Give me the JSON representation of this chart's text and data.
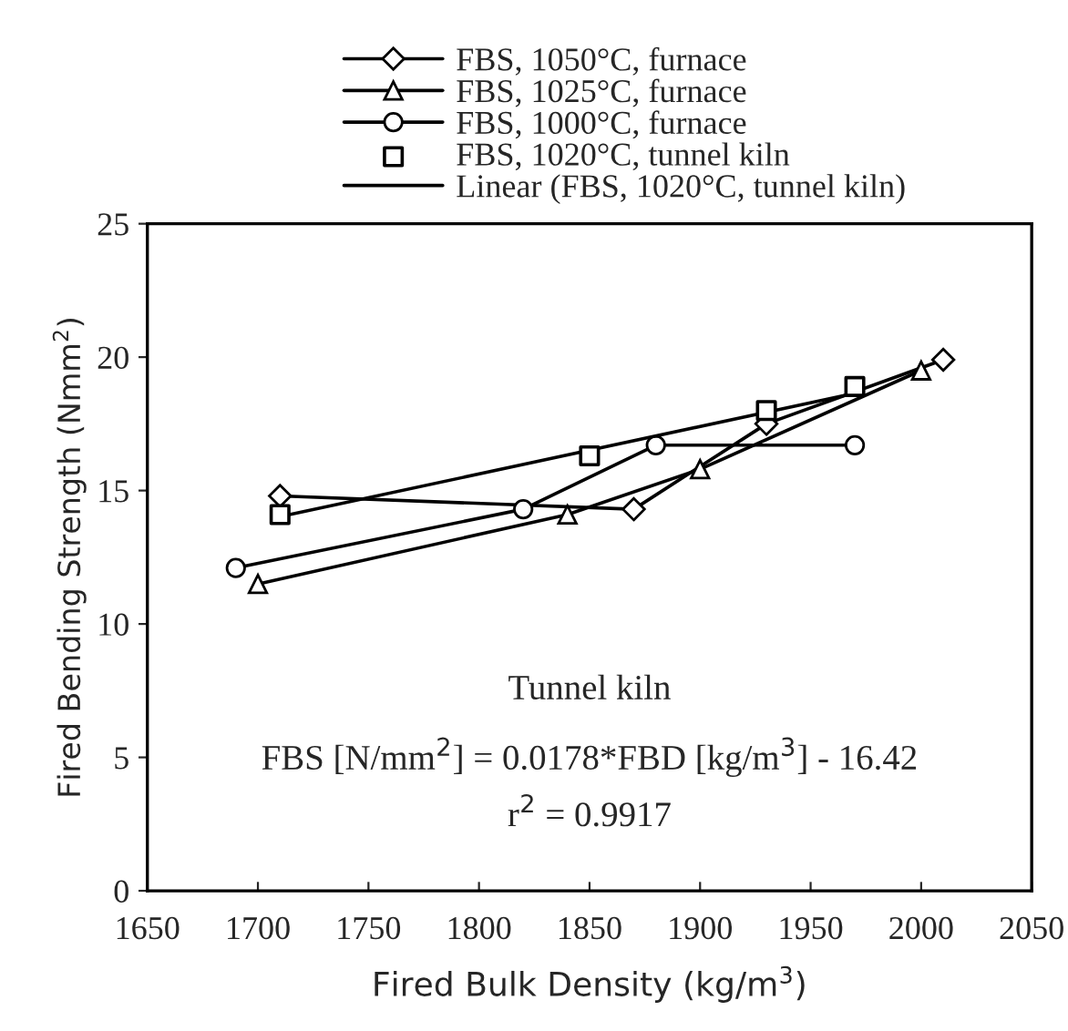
{
  "chart_data": {
    "type": "line",
    "xlabel": "Fired Bulk Density (kg/m$^{3}$)",
    "ylabel": "Fired Bending Strength (Nmm$^{2}$)",
    "xlim": [
      1650,
      2050
    ],
    "xticks": [
      1650,
      1700,
      1750,
      1800,
      1850,
      1900,
      1950,
      2000,
      2050
    ],
    "ylim": [
      0,
      25
    ],
    "yticks": [
      0,
      5,
      10,
      15,
      20,
      25
    ],
    "grid": false,
    "legend": "top",
    "series": [
      {
        "name": "FBS, 1050°C, furnace",
        "marker": "diamond",
        "color": "#000000",
        "x": [
          1710,
          1870,
          1930,
          2010
        ],
        "values": [
          14.8,
          14.3,
          17.5,
          19.9
        ]
      },
      {
        "name": "FBS, 1025°C, furnace",
        "marker": "triangle",
        "color": "#000000",
        "x": [
          1700,
          1840,
          1900,
          2000
        ],
        "values": [
          11.5,
          14.1,
          15.8,
          19.5
        ]
      },
      {
        "name": "FBS, 1000°C, furnace",
        "marker": "circle",
        "color": "#000000",
        "x": [
          1690,
          1820,
          1880,
          1970
        ],
        "values": [
          12.1,
          14.3,
          16.7,
          16.7
        ]
      },
      {
        "name": "FBS, 1020°C, tunnel kiln",
        "type": "scatter",
        "marker": "square",
        "color": "#000000",
        "x": [
          1710,
          1850,
          1930,
          1970
        ],
        "values": [
          14.1,
          16.3,
          18.0,
          18.9
        ]
      },
      {
        "name": "Linear (FBS, 1020°C, tunnel kiln)",
        "marker": "none",
        "color": "#000000",
        "x": [
          1710,
          1970
        ],
        "values": [
          14.02,
          18.65
        ]
      }
    ],
    "annotations": [
      "Tunnel kiln",
      "FBS [N/mm$^{2}$] = 0.0178*FBD [kg/m$^{3}$] - 16.42",
      "r$^{2}$ = 0.9917"
    ]
  }
}
